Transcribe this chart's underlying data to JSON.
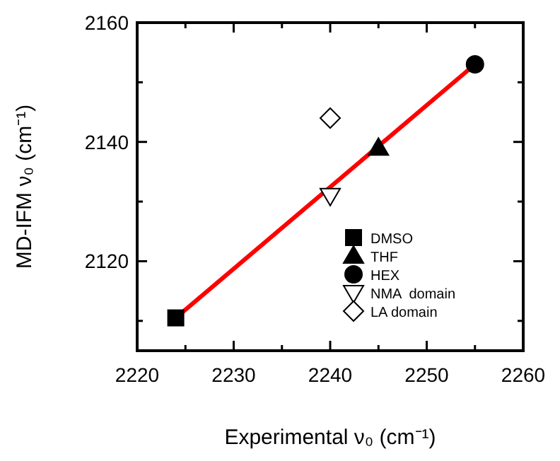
{
  "chart_data": {
    "type": "scatter",
    "xlabel": "Experimental ν₀ (cm⁻¹)",
    "ylabel": "MD-IFM ν₀ (cm⁻¹)",
    "xlim": [
      2220,
      2260
    ],
    "ylim": [
      2105,
      2160
    ],
    "xticks": [
      2220,
      {
        "value": 2225,
        "label": null
      },
      2230,
      {
        "value": 2235,
        "label": null
      },
      2240,
      {
        "value": 2245,
        "label": null
      },
      2250,
      {
        "value": 2255,
        "label": null
      },
      2260
    ],
    "yticks": [
      {
        "value": 2110,
        "label": null
      },
      2120,
      {
        "value": 2130,
        "label": null
      },
      2140,
      {
        "value": 2150,
        "label": null
      },
      2160
    ],
    "grid": false,
    "legend": "bottom right",
    "series": [
      {
        "type": "line",
        "color": "#ff0000",
        "x": [
          2224,
          2255
        ],
        "values": [
          2110.5,
          2153
        ],
        "line_style": "solid"
      },
      {
        "name": "DMSO",
        "color": "#000000",
        "x": [
          2224
        ],
        "values": [
          2110.5
        ],
        "marker": "square"
      },
      {
        "name": "THF",
        "color": "#000000",
        "x": [
          2245
        ],
        "values": [
          2139
        ],
        "marker": "triangle"
      },
      {
        "name": "HEX",
        "color": "#000000",
        "x": [
          2255
        ],
        "values": [
          2153
        ],
        "marker": "circle"
      },
      {
        "name": "NMA  domain",
        "color": "#000000",
        "x": [
          2240
        ],
        "values": [
          2131
        ],
        "marker": "triangle-down"
      },
      {
        "name": "LA domain",
        "color": "#000000",
        "x": [
          2240
        ],
        "values": [
          2144
        ],
        "marker": "diamond"
      }
    ]
  }
}
